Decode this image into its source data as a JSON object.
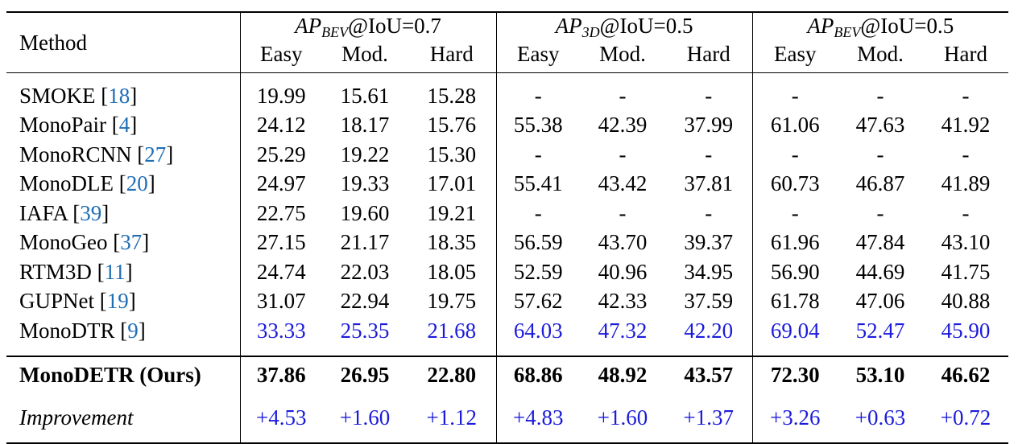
{
  "header": {
    "method_label": "Method",
    "groups": [
      {
        "ap": "AP",
        "sub": "BEV",
        "iou": "@IoU=0.7"
      },
      {
        "ap": "AP",
        "sub": "3D",
        "iou": "@IoU=0.5"
      },
      {
        "ap": "AP",
        "sub": "BEV",
        "iou": "@IoU=0.5"
      }
    ],
    "levels": [
      "Easy",
      "Mod.",
      "Hard",
      "Easy",
      "Mod.",
      "Hard",
      "Easy",
      "Mod.",
      "Hard"
    ]
  },
  "rows": [
    {
      "method": "SMOKE",
      "cite": "18",
      "values": [
        "19.99",
        "15.61",
        "15.28",
        "-",
        "-",
        "-",
        "-",
        "-",
        "-"
      ]
    },
    {
      "method": "MonoPair",
      "cite": "4",
      "values": [
        "24.12",
        "18.17",
        "15.76",
        "55.38",
        "42.39",
        "37.99",
        "61.06",
        "47.63",
        "41.92"
      ]
    },
    {
      "method": "MonoRCNN",
      "cite": "27",
      "values": [
        "25.29",
        "19.22",
        "15.30",
        "-",
        "-",
        "-",
        "-",
        "-",
        "-"
      ]
    },
    {
      "method": "MonoDLE",
      "cite": "20",
      "values": [
        "24.97",
        "19.33",
        "17.01",
        "55.41",
        "43.42",
        "37.81",
        "60.73",
        "46.87",
        "41.89"
      ]
    },
    {
      "method": "IAFA",
      "cite": "39",
      "values": [
        "22.75",
        "19.60",
        "19.21",
        "-",
        "-",
        "-",
        "-",
        "-",
        "-"
      ]
    },
    {
      "method": "MonoGeo",
      "cite": "37",
      "values": [
        "27.15",
        "21.17",
        "18.35",
        "56.59",
        "43.70",
        "39.37",
        "61.96",
        "47.84",
        "43.10"
      ]
    },
    {
      "method": "RTM3D",
      "cite": "11",
      "values": [
        "24.74",
        "22.03",
        "18.05",
        "52.59",
        "40.96",
        "34.95",
        "56.90",
        "44.69",
        "41.75"
      ]
    },
    {
      "method": "GUPNet",
      "cite": "19",
      "values": [
        "31.07",
        "22.94",
        "19.75",
        "57.62",
        "42.33",
        "37.59",
        "61.78",
        "47.06",
        "40.88"
      ]
    },
    {
      "method": "MonoDTR",
      "cite": "9",
      "values": [
        "33.33",
        "25.35",
        "21.68",
        "64.03",
        "47.32",
        "42.20",
        "69.04",
        "52.47",
        "45.90"
      ]
    }
  ],
  "ours": {
    "method": "MonoDETR (Ours)",
    "values": [
      "37.86",
      "26.95",
      "22.80",
      "68.86",
      "48.92",
      "43.57",
      "72.30",
      "53.10",
      "46.62"
    ]
  },
  "improvement": {
    "label": "Improvement",
    "values": [
      "+4.53",
      "+1.60",
      "+1.12",
      "+4.83",
      "+1.60",
      "+1.37",
      "+3.26",
      "+0.63",
      "+0.72"
    ]
  },
  "colors": {
    "citation": "#1f6db5",
    "highlight": "#1b1bdb"
  }
}
